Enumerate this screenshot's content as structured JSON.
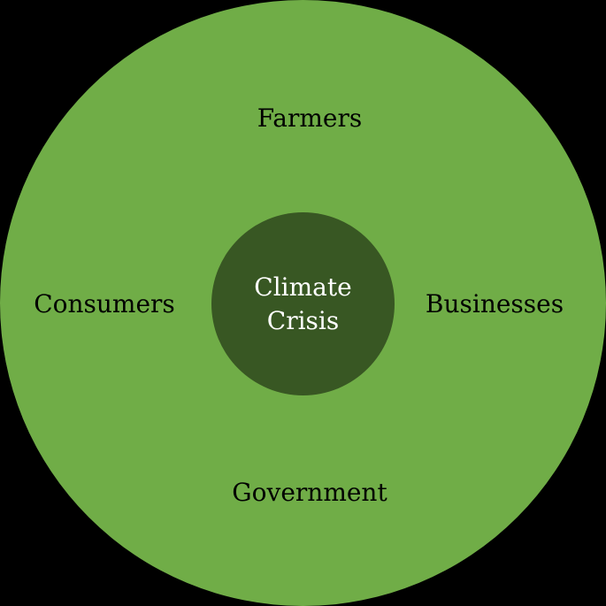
{
  "diagram": {
    "center": {
      "lines": [
        "Climate",
        "Crisis"
      ]
    },
    "stakeholders": {
      "top": "Farmers",
      "left": "Consumers",
      "right": "Businesses",
      "bottom": "Government"
    }
  },
  "colors": {
    "outer_circle": "#70AD47",
    "inner_circle": "#385723",
    "center_text": "#FFFFFF",
    "label_text": "#000000",
    "background": "#000000"
  }
}
